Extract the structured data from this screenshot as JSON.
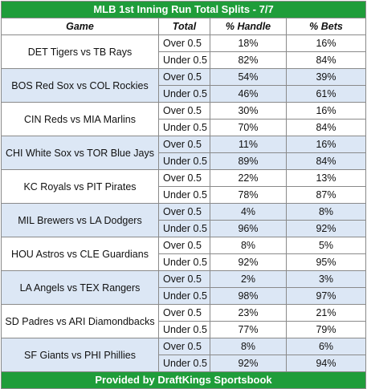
{
  "title": "MLB 1st Inning Run Total Splits - 7/7",
  "columns": [
    "Game",
    "Total",
    "% Handle",
    "% Bets"
  ],
  "games": [
    {
      "game": "DET Tigers vs TB Rays",
      "rows": [
        {
          "total": "Over 0.5",
          "handle": "18%",
          "bets": "16%"
        },
        {
          "total": "Under 0.5",
          "handle": "82%",
          "bets": "84%"
        }
      ]
    },
    {
      "game": "BOS Red Sox vs COL Rockies",
      "rows": [
        {
          "total": "Over 0.5",
          "handle": "54%",
          "bets": "39%"
        },
        {
          "total": "Under 0.5",
          "handle": "46%",
          "bets": "61%"
        }
      ]
    },
    {
      "game": "CIN Reds vs MIA Marlins",
      "rows": [
        {
          "total": "Over 0.5",
          "handle": "30%",
          "bets": "16%"
        },
        {
          "total": "Under 0.5",
          "handle": "70%",
          "bets": "84%"
        }
      ]
    },
    {
      "game": "CHI White Sox vs TOR Blue Jays",
      "rows": [
        {
          "total": "Over 0.5",
          "handle": "11%",
          "bets": "16%"
        },
        {
          "total": "Under 0.5",
          "handle": "89%",
          "bets": "84%"
        }
      ]
    },
    {
      "game": "KC Royals vs PIT Pirates",
      "rows": [
        {
          "total": "Over 0.5",
          "handle": "22%",
          "bets": "13%"
        },
        {
          "total": "Under 0.5",
          "handle": "78%",
          "bets": "87%"
        }
      ]
    },
    {
      "game": "MIL Brewers vs LA Dodgers",
      "rows": [
        {
          "total": "Over 0.5",
          "handle": "4%",
          "bets": "8%"
        },
        {
          "total": "Under 0.5",
          "handle": "96%",
          "bets": "92%"
        }
      ]
    },
    {
      "game": "HOU Astros vs CLE Guardians",
      "rows": [
        {
          "total": "Over 0.5",
          "handle": "8%",
          "bets": "5%"
        },
        {
          "total": "Under 0.5",
          "handle": "92%",
          "bets": "95%"
        }
      ]
    },
    {
      "game": "LA Angels vs TEX Rangers",
      "rows": [
        {
          "total": "Over 0.5",
          "handle": "2%",
          "bets": "3%"
        },
        {
          "total": "Under 0.5",
          "handle": "98%",
          "bets": "97%"
        }
      ]
    },
    {
      "game": "SD Padres vs ARI Diamondbacks",
      "rows": [
        {
          "total": "Over 0.5",
          "handle": "23%",
          "bets": "21%"
        },
        {
          "total": "Under 0.5",
          "handle": "77%",
          "bets": "79%"
        }
      ]
    },
    {
      "game": "SF Giants vs PHI Phillies",
      "rows": [
        {
          "total": "Over 0.5",
          "handle": "8%",
          "bets": "6%"
        },
        {
          "total": "Under 0.5",
          "handle": "92%",
          "bets": "94%"
        }
      ]
    }
  ],
  "footer": "Provided by DraftKings Sportsbook",
  "colors": {
    "banner": "#1f9d3a",
    "band_blue": "#dce7f5",
    "band_white": "#ffffff"
  }
}
